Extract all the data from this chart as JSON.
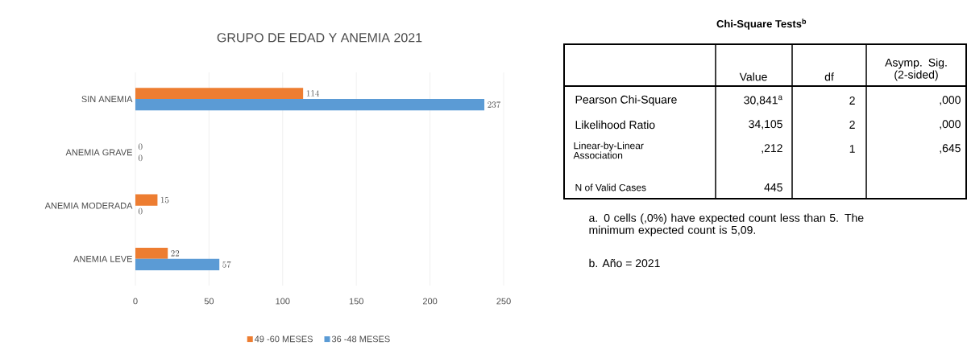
{
  "chart_data": [
    {
      "type": "bar",
      "orientation": "horizontal",
      "title": "GRUPO DE EDAD Y ANEMIA 2021",
      "categories": [
        "SIN ANEMIA",
        "ANEMIA GRAVE",
        "ANEMIA MODERADA",
        "ANEMIA LEVE"
      ],
      "series": [
        {
          "name": "49 -60 MESES",
          "color": "#ed7d31",
          "values": [
            114,
            0,
            15,
            22
          ]
        },
        {
          "name": "36 -48 MESES",
          "color": "#5b9bd5",
          "values": [
            237,
            0,
            0,
            57
          ]
        }
      ],
      "xlim": [
        0,
        250
      ],
      "xticks": [
        0,
        50,
        100,
        150,
        200,
        250
      ],
      "grid": "x",
      "legend": "bottom",
      "data_labels": true
    },
    {
      "type": "other",
      "title": "Chi-Square Tests$^{b}$",
      "annotations": [
        "Value",
        "df",
        "Asymp. Sig. (2-sided)",
        "Pearson Chi-Square",
        "30,841$^{a}$",
        "2",
        ",000",
        "Likelihood Ratio",
        "34,105",
        "2",
        ",000",
        "Linear-by-Linear Association",
        ",212",
        "1",
        ",645",
        "N of Valid Cases",
        "445",
        "a. 0 cells (,0%) have expected count less than 5. The minimum expected count is 5,09.",
        "b. Año = 2021"
      ]
    }
  ]
}
